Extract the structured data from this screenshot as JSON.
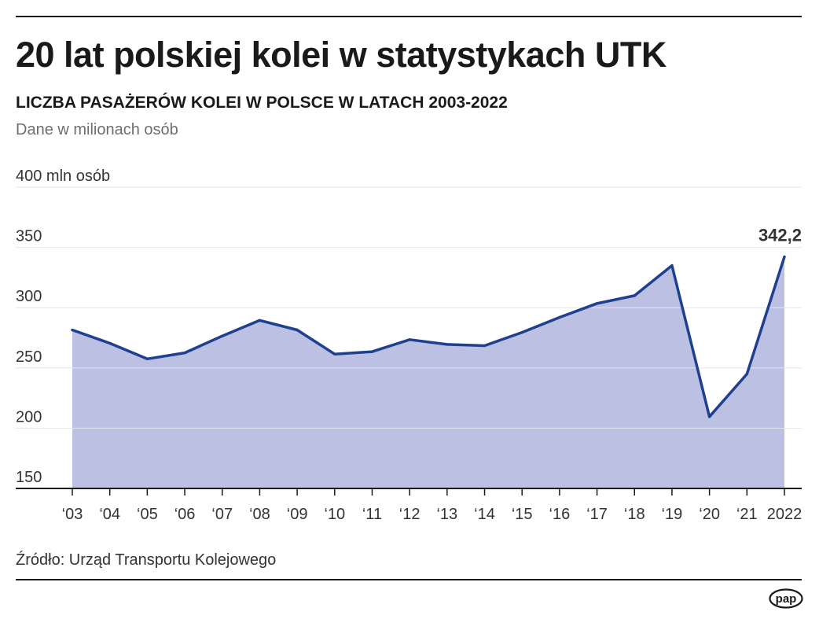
{
  "header": {
    "title": "20 lat polskiej kolei w statystykach UTK",
    "subtitle": "LICZBA PASAŻERÓW KOLEI W POLSCE W LATACH 2003-2022",
    "unit_note": "Dane w milionach osób"
  },
  "footer": {
    "source": "Źródło: Urząd Transportu Kolejowego",
    "logo_text": "pap"
  },
  "colors": {
    "line": "#1f3f8f",
    "area": "#bcc0e3",
    "grid": "#e6e6e6",
    "text": "#1a1a1a"
  },
  "chart_data": {
    "type": "area",
    "title": "LICZBA PASAŻERÓW KOLEI W POLSCE W LATACH 2003-2022",
    "xlabel": "",
    "ylabel": "Dane w milionach osób",
    "ylim": [
      150,
      400
    ],
    "grid": true,
    "x_labels": [
      "‘03",
      "‘04",
      "‘05",
      "‘06",
      "‘07",
      "‘08",
      "‘09",
      "‘10",
      "‘11",
      "‘12",
      "‘13",
      "‘14",
      "‘15",
      "‘16",
      "‘17",
      "‘18",
      "‘19",
      "‘20",
      "‘21",
      "2022"
    ],
    "y_ticks": [
      {
        "value": 150,
        "label": "150"
      },
      {
        "value": 200,
        "label": "200"
      },
      {
        "value": 250,
        "label": "250"
      },
      {
        "value": 300,
        "label": "300"
      },
      {
        "value": 350,
        "label": "350"
      },
      {
        "value": 400,
        "label": "400 mln osób"
      }
    ],
    "series": [
      {
        "name": "Liczba pasażerów",
        "values": [
          281.5,
          270.5,
          257.5,
          262.5,
          276.5,
          289.5,
          281.5,
          261.5,
          263.5,
          273.5,
          269.5,
          268.5,
          279.5,
          292.0,
          303.5,
          310.0,
          335.0,
          209.5,
          245.0,
          342.2
        ]
      }
    ],
    "annotations": [
      {
        "index": 19,
        "label": "342,2"
      }
    ]
  }
}
